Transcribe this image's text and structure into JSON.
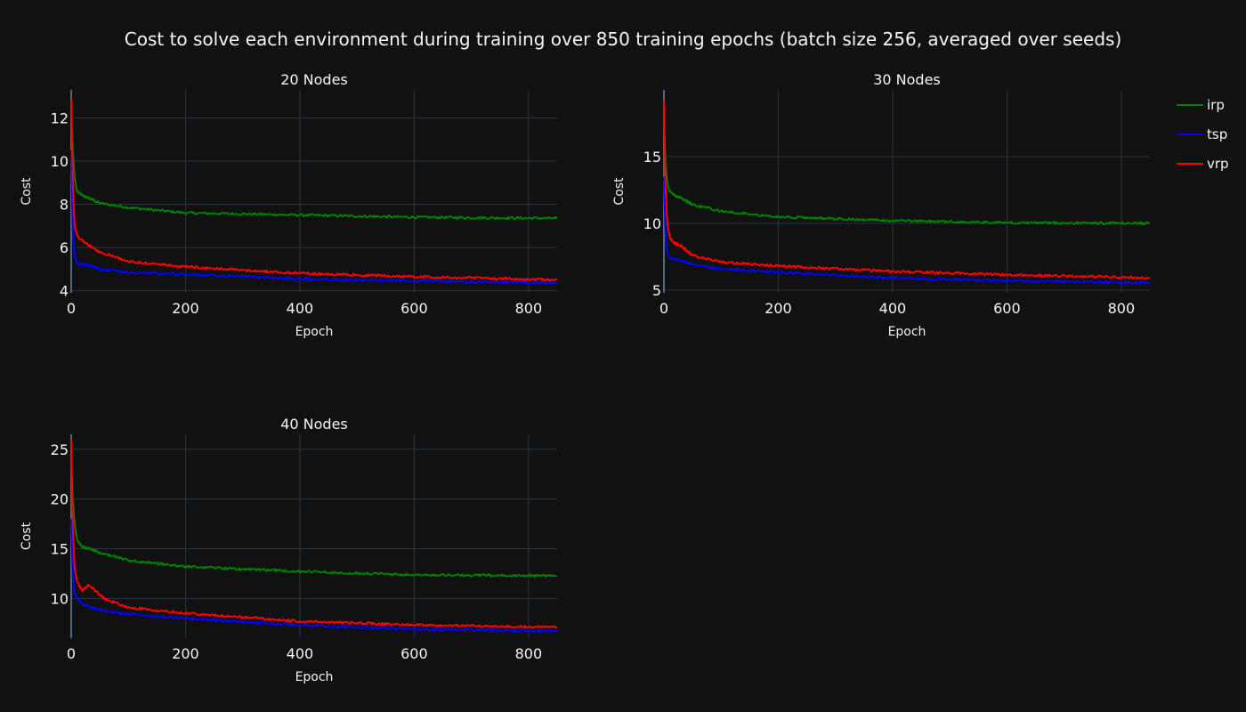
{
  "figure": {
    "title": "Cost to solve each environment during training over 850 training epochs (batch size 256, averaged over seeds)"
  },
  "legend": {
    "placement": "top-right",
    "items": [
      {
        "name": "irp",
        "color": "#008000"
      },
      {
        "name": "tsp",
        "color": "#0000ff"
      },
      {
        "name": "vrp",
        "color": "#ff0000"
      }
    ]
  },
  "chart_data": [
    {
      "type": "line",
      "title": "20 Nodes",
      "xlabel": "Epoch",
      "ylabel": "Cost",
      "xlim": [
        0,
        850
      ],
      "ylim": [
        3.9,
        13.3
      ],
      "xticks": [
        0,
        200,
        400,
        600,
        800
      ],
      "yticks": [
        4,
        6,
        8,
        10,
        12
      ],
      "grid": true,
      "series": [
        {
          "name": "irp",
          "color": "#008000",
          "x": [
            0,
            3,
            6,
            10,
            15,
            20,
            30,
            50,
            100,
            200,
            400,
            600,
            850
          ],
          "y": [
            12.5,
            10.5,
            9.2,
            8.6,
            8.5,
            8.4,
            8.3,
            8.05,
            7.85,
            7.6,
            7.5,
            7.4,
            7.35
          ]
        },
        {
          "name": "tsp",
          "color": "#0000ff",
          "x": [
            0,
            3,
            6,
            10,
            15,
            20,
            30,
            50,
            100,
            200,
            400,
            600,
            850
          ],
          "y": [
            10.5,
            6.6,
            5.6,
            5.3,
            5.2,
            5.22,
            5.2,
            5.0,
            4.85,
            4.75,
            4.55,
            4.45,
            4.35
          ]
        },
        {
          "name": "vrp",
          "color": "#ff0000",
          "x": [
            0,
            3,
            6,
            10,
            15,
            20,
            30,
            50,
            100,
            200,
            400,
            600,
            850
          ],
          "y": [
            12.9,
            8.8,
            7.0,
            6.6,
            6.4,
            6.35,
            6.1,
            5.8,
            5.35,
            5.1,
            4.8,
            4.65,
            4.5
          ]
        }
      ]
    },
    {
      "type": "line",
      "title": "30 Nodes",
      "xlabel": "Epoch",
      "ylabel": "Cost",
      "xlim": [
        0,
        850
      ],
      "ylim": [
        4.8,
        20.0
      ],
      "xticks": [
        0,
        200,
        400,
        600,
        800
      ],
      "yticks": [
        5,
        10,
        15
      ],
      "grid": true,
      "series": [
        {
          "name": "irp",
          "color": "#008000",
          "x": [
            0,
            3,
            6,
            10,
            15,
            20,
            30,
            50,
            100,
            200,
            400,
            600,
            850
          ],
          "y": [
            17.8,
            14.5,
            13.0,
            12.4,
            12.2,
            12.1,
            11.9,
            11.4,
            10.9,
            10.5,
            10.2,
            10.05,
            10.0
          ]
        },
        {
          "name": "tsp",
          "color": "#0000ff",
          "x": [
            0,
            3,
            6,
            10,
            15,
            20,
            30,
            50,
            100,
            200,
            400,
            600,
            850
          ],
          "y": [
            13.5,
            9.0,
            7.8,
            7.4,
            7.3,
            7.3,
            7.2,
            6.9,
            6.6,
            6.35,
            5.9,
            5.7,
            5.55
          ]
        },
        {
          "name": "vrp",
          "color": "#ff0000",
          "x": [
            0,
            3,
            6,
            10,
            15,
            20,
            30,
            50,
            100,
            200,
            400,
            600,
            850
          ],
          "y": [
            19.2,
            12.5,
            10.0,
            9.0,
            8.6,
            8.5,
            8.3,
            7.6,
            7.1,
            6.8,
            6.4,
            6.15,
            5.9
          ]
        }
      ]
    },
    {
      "type": "line",
      "title": "40 Nodes",
      "xlabel": "Epoch",
      "ylabel": "Cost",
      "xlim": [
        0,
        850
      ],
      "ylim": [
        6.0,
        26.5
      ],
      "xticks": [
        0,
        200,
        400,
        600,
        800
      ],
      "yticks": [
        10,
        15,
        20,
        25
      ],
      "grid": true,
      "series": [
        {
          "name": "irp",
          "color": "#008000",
          "x": [
            0,
            3,
            6,
            10,
            15,
            20,
            30,
            50,
            100,
            200,
            400,
            600,
            850
          ],
          "y": [
            23.5,
            20.0,
            17.5,
            16.0,
            15.5,
            15.2,
            15.0,
            14.6,
            13.8,
            13.2,
            12.7,
            12.35,
            12.25
          ]
        },
        {
          "name": "tsp",
          "color": "#0000ff",
          "x": [
            0,
            3,
            6,
            10,
            15,
            20,
            30,
            50,
            100,
            200,
            400,
            600,
            850
          ],
          "y": [
            18.0,
            12.0,
            10.5,
            10.0,
            9.7,
            9.5,
            9.2,
            8.8,
            8.4,
            8.0,
            7.3,
            6.9,
            6.7
          ]
        },
        {
          "name": "vrp",
          "color": "#ff0000",
          "x": [
            0,
            3,
            6,
            10,
            15,
            20,
            25,
            30,
            35,
            45,
            60,
            100,
            200,
            400,
            600,
            850
          ],
          "y": [
            26.0,
            17.0,
            13.0,
            11.8,
            11.2,
            10.8,
            11.0,
            11.3,
            11.2,
            10.6,
            9.9,
            9.1,
            8.5,
            7.7,
            7.3,
            7.1
          ]
        }
      ]
    }
  ]
}
